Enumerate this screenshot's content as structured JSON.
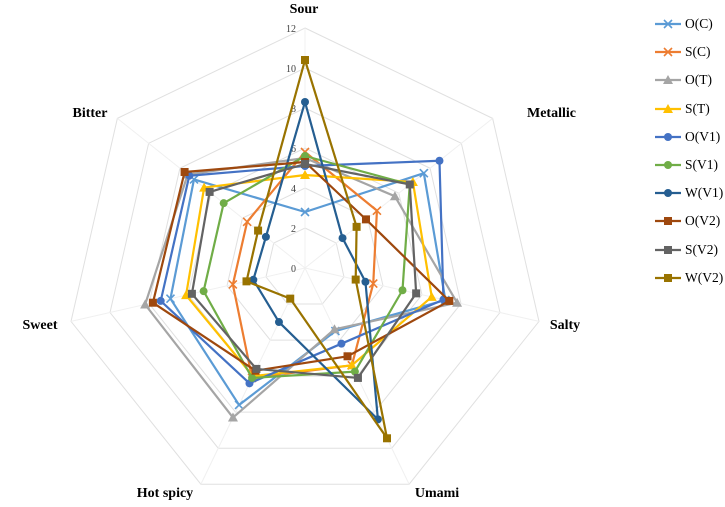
{
  "chart_data": {
    "type": "radar",
    "title": "",
    "axes": [
      "Sour",
      "Metallic",
      "Salty",
      "Umami",
      "Hot spicy",
      "Sweet",
      "Bitter"
    ],
    "rlim": [
      0,
      12
    ],
    "ticks": [
      "0",
      "2",
      "4",
      "6",
      "8",
      "10",
      "12"
    ],
    "tick_values": [
      0,
      2,
      4,
      6,
      8,
      10,
      12
    ],
    "grid": true,
    "legend_position": "right",
    "series": [
      {
        "name": "O(C)",
        "color": "#5B9BD5",
        "marker": "x",
        "values": [
          2.8,
          7.6,
          7.2,
          3.5,
          7.6,
          6.9,
          7.1
        ]
      },
      {
        "name": "S(C)",
        "color": "#ED7D31",
        "marker": "x",
        "values": [
          5.8,
          4.6,
          3.5,
          5.4,
          6.1,
          3.7,
          3.7
        ]
      },
      {
        "name": "O(T)",
        "color": "#A5A5A5",
        "marker": "triangle",
        "values": [
          5.5,
          5.75,
          7.8,
          3.4,
          8.3,
          8.2,
          7.5
        ]
      },
      {
        "name": "S(T)",
        "color": "#FFC000",
        "marker": "triangle",
        "values": [
          4.65,
          6.9,
          6.5,
          5.4,
          6.0,
          6.1,
          6.45
        ]
      },
      {
        "name": "O(V1)",
        "color": "#4472C4",
        "marker": "circle",
        "values": [
          5.1,
          8.6,
          7.1,
          4.2,
          6.4,
          7.4,
          7.4
        ]
      },
      {
        "name": "S(V1)",
        "color": "#70AD47",
        "marker": "circle",
        "values": [
          5.6,
          6.7,
          5.0,
          5.75,
          6.1,
          5.2,
          5.2
        ]
      },
      {
        "name": "W(V1)",
        "color": "#255E91",
        "marker": "circle",
        "values": [
          8.3,
          2.4,
          3.1,
          8.4,
          3.0,
          2.65,
          2.5
        ]
      },
      {
        "name": "O(V2)",
        "color": "#9E480E",
        "marker": "square",
        "values": [
          5.3,
          3.9,
          7.4,
          4.9,
          5.7,
          7.8,
          7.7
        ]
      },
      {
        "name": "S(V2)",
        "color": "#636363",
        "marker": "square",
        "values": [
          5.2,
          6.7,
          5.7,
          6.1,
          5.6,
          5.8,
          6.1
        ]
      },
      {
        "name": "W(V2)",
        "color": "#997300",
        "marker": "square",
        "values": [
          10.4,
          3.3,
          2.6,
          9.45,
          1.7,
          3.0,
          3.0
        ]
      }
    ]
  }
}
